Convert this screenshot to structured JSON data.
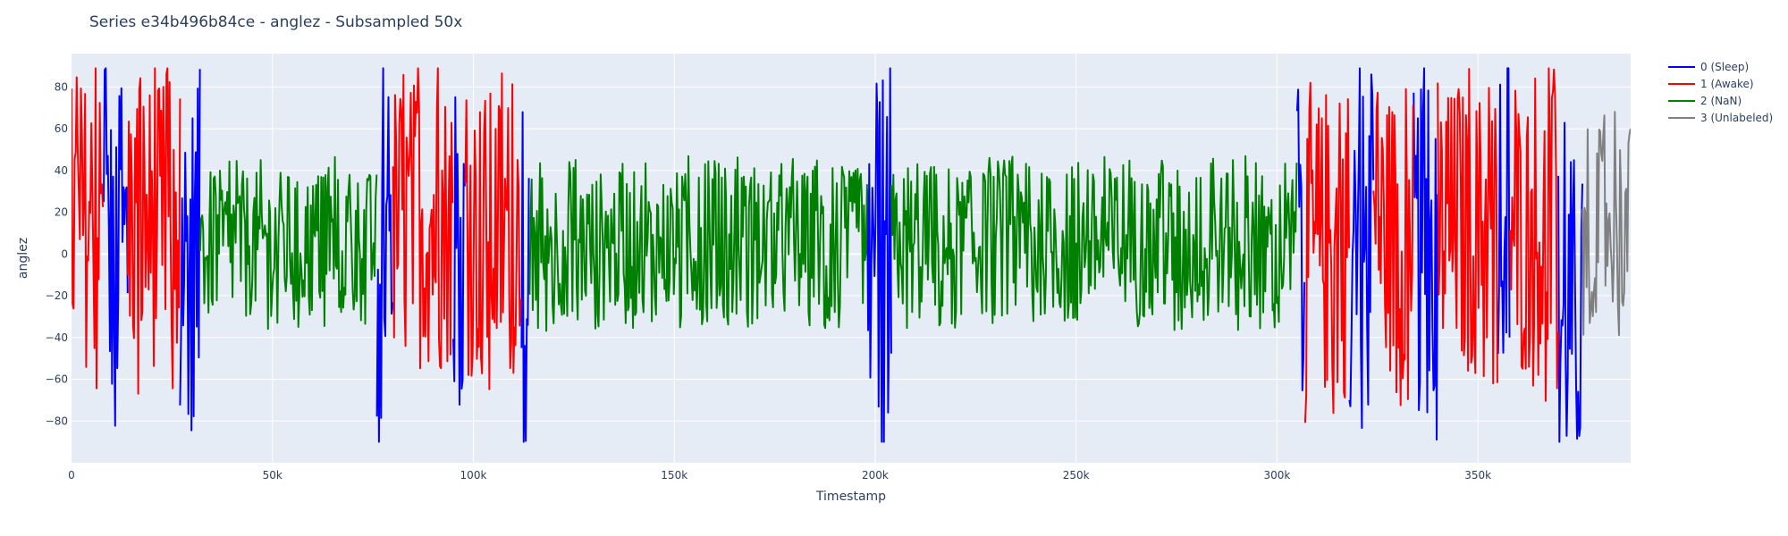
{
  "chart_data": {
    "type": "line",
    "title": "Series e34b496b84ce - anglez - Subsampled 50x",
    "xlabel": "Timestamp",
    "ylabel": "anglez",
    "xlim": [
      0,
      388000
    ],
    "ylim": [
      -100,
      96
    ],
    "x_ticks": [
      0,
      50000,
      100000,
      150000,
      200000,
      250000,
      300000,
      350000
    ],
    "x_tick_labels": [
      "0",
      "50k",
      "100k",
      "150k",
      "200k",
      "250k",
      "300k",
      "350k"
    ],
    "y_ticks": [
      -80,
      -60,
      -40,
      -20,
      0,
      20,
      40,
      60,
      80
    ],
    "y_tick_labels": [
      "−80",
      "−60",
      "−40",
      "−20",
      "0",
      "20",
      "40",
      "60",
      "80"
    ],
    "grid": true,
    "legend_position": "top-right",
    "series": [
      {
        "name": "0 (Sleep)",
        "color": "#0000ff",
        "segments": [
          [
            8000,
            14000
          ],
          [
            27000,
            32000
          ],
          [
            76000,
            80000
          ],
          [
            95000,
            98000
          ],
          [
            112000,
            114000
          ],
          [
            198000,
            204000
          ],
          [
            305000,
            307000
          ],
          [
            318000,
            324000
          ],
          [
            334000,
            340000
          ],
          [
            355000,
            358000
          ],
          [
            370000,
            376000
          ]
        ],
        "center": [
          0,
          0,
          0,
          0,
          0,
          0,
          -10,
          0,
          0,
          30,
          -30
        ],
        "amp": 80
      },
      {
        "name": "1 (Awake)",
        "color": "#ff0000",
        "segments": [
          [
            0,
            8000
          ],
          [
            14000,
            27000
          ],
          [
            80000,
            95000
          ],
          [
            98000,
            112000
          ],
          [
            307000,
            318000
          ],
          [
            324000,
            334000
          ],
          [
            340000,
            355000
          ],
          [
            358000,
            370000
          ]
        ],
        "center": [
          15,
          15,
          15,
          10,
          0,
          10,
          10,
          10
        ],
        "amp": 70
      },
      {
        "name": "2 (NaN)",
        "color": "#008000",
        "segments": [
          [
            32000,
            76000
          ],
          [
            114000,
            198000
          ],
          [
            204000,
            305000
          ]
        ],
        "center": [
          5,
          5,
          5
        ],
        "amp": 35
      },
      {
        "name": "3 (Unlabeled)",
        "color": "#808080",
        "segments": [
          [
            376000,
            388000
          ]
        ],
        "center": [
          15
        ],
        "amp": 45
      }
    ]
  }
}
